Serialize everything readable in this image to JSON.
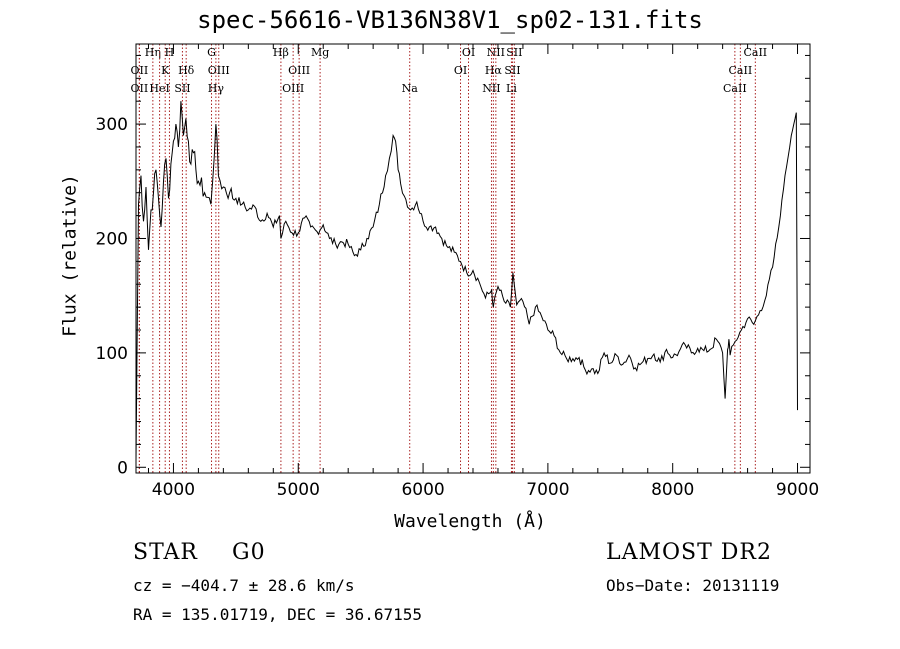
{
  "title": "spec-56616-VB136N38V1_sp02-131.fits",
  "footer": {
    "object_class": "STAR",
    "subclass": "G0",
    "survey": "LAMOST DR2",
    "cz": "cz = −404.7 ± 28.6 km/s",
    "obs_date": "Obs−Date: 20131119",
    "coords": "RA = 135.01719, DEC =  36.67155"
  },
  "chart_data": {
    "type": "line",
    "title": "spec-56616-VB136N38V1_sp02-131.fits",
    "xlabel": "Wavelength (Å)",
    "ylabel": "Flux (relative)",
    "xlim": [
      3700,
      9100
    ],
    "ylim": [
      -5,
      370
    ],
    "xticks": [
      4000,
      5000,
      6000,
      7000,
      8000,
      9000
    ],
    "yticks": [
      0,
      100,
      200,
      300
    ],
    "series": [
      {
        "name": "flux",
        "x": [
          3700,
          3720,
          3740,
          3760,
          3780,
          3800,
          3820,
          3840,
          3860,
          3880,
          3900,
          3920,
          3940,
          3960,
          3980,
          4000,
          4020,
          4040,
          4060,
          4080,
          4100,
          4120,
          4140,
          4160,
          4180,
          4200,
          4250,
          4300,
          4340,
          4360,
          4400,
          4450,
          4500,
          4550,
          4600,
          4650,
          4700,
          4750,
          4800,
          4850,
          4861,
          4900,
          4950,
          5000,
          5050,
          5100,
          5150,
          5200,
          5250,
          5300,
          5350,
          5400,
          5450,
          5500,
          5550,
          5600,
          5650,
          5700,
          5730,
          5760,
          5780,
          5800,
          5820,
          5850,
          5900,
          5950,
          6000,
          6050,
          6100,
          6150,
          6200,
          6250,
          6300,
          6350,
          6400,
          6450,
          6500,
          6550,
          6563,
          6600,
          6650,
          6700,
          6720,
          6750,
          6800,
          6850,
          6900,
          6950,
          7000,
          7050,
          7100,
          7150,
          7200,
          7250,
          7300,
          7350,
          7400,
          7450,
          7500,
          7550,
          7600,
          7650,
          7700,
          7750,
          7800,
          7850,
          7900,
          7950,
          8000,
          8050,
          8100,
          8150,
          8200,
          8250,
          8300,
          8350,
          8400,
          8420,
          8440,
          8450,
          8460,
          8500,
          8550,
          8600,
          8650,
          8700,
          8750,
          8800,
          8850,
          8900,
          8950,
          8970,
          8990,
          9000
        ],
        "y": [
          5,
          230,
          255,
          215,
          245,
          190,
          225,
          240,
          260,
          235,
          210,
          250,
          270,
          235,
          265,
          285,
          300,
          280,
          320,
          290,
          305,
          285,
          265,
          275,
          260,
          250,
          240,
          230,
          300,
          255,
          245,
          240,
          235,
          230,
          225,
          228,
          215,
          222,
          210,
          220,
          200,
          215,
          205,
          205,
          218,
          210,
          206,
          212,
          200,
          195,
          197,
          195,
          185,
          190,
          200,
          210,
          230,
          255,
          270,
          290,
          285,
          260,
          248,
          237,
          225,
          232,
          215,
          210,
          210,
          200,
          192,
          188,
          180,
          170,
          172,
          162,
          148,
          155,
          140,
          158,
          145,
          140,
          170,
          142,
          145,
          125,
          140,
          132,
          120,
          115,
          100,
          95,
          95,
          96,
          85,
          86,
          82,
          100,
          91,
          98,
          90,
          98,
          87,
          91,
          95,
          99,
          92,
          103,
          96,
          101,
          107,
          100,
          104,
          102,
          103,
          112,
          100,
          60,
          103,
          112,
          98,
          110,
          120,
          130,
          125,
          137,
          150,
          175,
          210,
          255,
          290,
          300,
          310,
          50
        ]
      }
    ],
    "lines": [
      {
        "label": "Hη",
        "wl": 3835,
        "row": 1
      },
      {
        "label": "OII",
        "wl": 3727,
        "row": 2
      },
      {
        "label": "OII",
        "wl": 3727,
        "row": 3
      },
      {
        "label": "K",
        "wl": 3934,
        "row": 2
      },
      {
        "label": "H",
        "wl": 3968,
        "row": 1
      },
      {
        "label": "HeI",
        "wl": 3889,
        "row": 3
      },
      {
        "label": "Hδ",
        "wl": 4102,
        "row": 2
      },
      {
        "label": "SII",
        "wl": 4072,
        "row": 3
      },
      {
        "label": "G",
        "wl": 4305,
        "row": 1
      },
      {
        "label": "OIII",
        "wl": 4363,
        "row": 2
      },
      {
        "label": "Hγ",
        "wl": 4340,
        "row": 3
      },
      {
        "label": "Hβ",
        "wl": 4861,
        "row": 1
      },
      {
        "label": "OIII",
        "wl": 5007,
        "row": 2
      },
      {
        "label": "OIII",
        "wl": 4959,
        "row": 3
      },
      {
        "label": "Mg",
        "wl": 5175,
        "row": 1
      },
      {
        "label": "Na",
        "wl": 5893,
        "row": 3
      },
      {
        "label": "OI",
        "wl": 6364,
        "row": 1
      },
      {
        "label": "OI",
        "wl": 6300,
        "row": 2
      },
      {
        "label": "NII",
        "wl": 6583,
        "row": 1
      },
      {
        "label": "Hα",
        "wl": 6563,
        "row": 2
      },
      {
        "label": "NII",
        "wl": 6548,
        "row": 3
      },
      {
        "label": "SII",
        "wl": 6731,
        "row": 1
      },
      {
        "label": "SII",
        "wl": 6716,
        "row": 2
      },
      {
        "label": "Li",
        "wl": 6708,
        "row": 3
      },
      {
        "label": "CaII",
        "wl": 8662,
        "row": 1
      },
      {
        "label": "CaII",
        "wl": 8542,
        "row": 2
      },
      {
        "label": "CaII",
        "wl": 8498,
        "row": 3
      }
    ]
  }
}
